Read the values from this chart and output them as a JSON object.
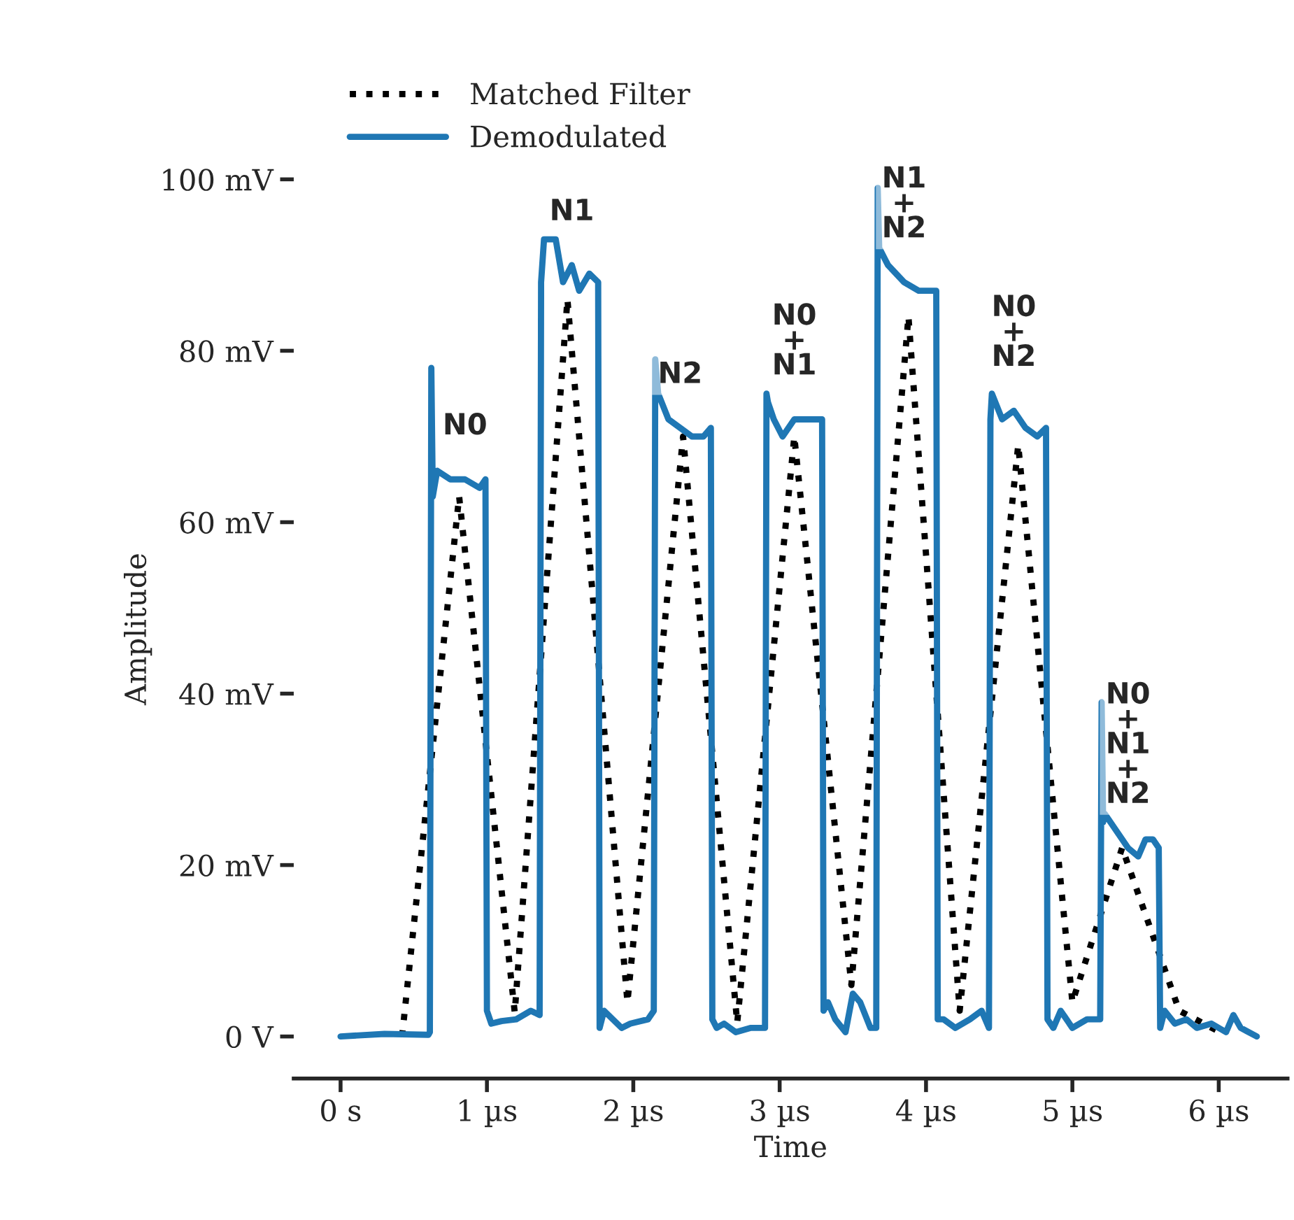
{
  "chart_data": {
    "type": "line",
    "xlabel": "Time",
    "ylabel": "Amplitude",
    "xlim": [
      -0.32,
      6.47
    ],
    "ylim": [
      -4.9,
      100
    ],
    "xticks": [
      {
        "value": 0,
        "label": "0 s"
      },
      {
        "value": 1,
        "label": "1 µs"
      },
      {
        "value": 2,
        "label": "2 µs"
      },
      {
        "value": 3,
        "label": "3 µs"
      },
      {
        "value": 4,
        "label": "4 µs"
      },
      {
        "value": 5,
        "label": "5 µs"
      },
      {
        "value": 6,
        "label": "6 µs"
      }
    ],
    "yticks": [
      {
        "value": 0,
        "label": "0 V"
      },
      {
        "value": 20,
        "label": "20 mV"
      },
      {
        "value": 40,
        "label": "40 mV"
      },
      {
        "value": 60,
        "label": "60 mV"
      },
      {
        "value": 80,
        "label": "80 mV"
      },
      {
        "value": 100,
        "label": "100 mV"
      }
    ],
    "grid": false,
    "legend": "top left",
    "series": [
      {
        "name": "Matched Filter",
        "color": "#000000",
        "line_style": "dotted",
        "x": [
          0.42,
          0.81,
          1.19,
          1.55,
          1.96,
          2.34,
          2.71,
          3.1,
          3.49,
          3.88,
          4.23,
          4.63,
          5.0,
          5.34,
          5.73,
          6.01
        ],
        "values": [
          0,
          63,
          2.8,
          86,
          4,
          70,
          1.6,
          70,
          6,
          84,
          3,
          69,
          4,
          22,
          3,
          0.5
        ]
      },
      {
        "name": "Demodulated",
        "color": "#1f77b4",
        "line_style": "solid",
        "x": [
          0,
          0.3,
          0.6,
          0.61,
          0.62,
          0.63,
          0.66,
          0.75,
          0.85,
          0.95,
          0.99,
          1.0,
          1.03,
          1.1,
          1.2,
          1.3,
          1.36,
          1.37,
          1.39,
          1.47,
          1.52,
          1.58,
          1.63,
          1.7,
          1.76,
          1.77,
          1.8,
          1.86,
          1.92,
          1.98,
          2.1,
          2.14,
          2.15,
          2.17,
          2.24,
          2.32,
          2.4,
          2.48,
          2.53,
          2.54,
          2.57,
          2.62,
          2.7,
          2.8,
          2.9,
          2.91,
          2.92,
          2.96,
          3.02,
          3.1,
          3.2,
          3.29,
          3.3,
          3.33,
          3.38,
          3.45,
          3.5,
          3.55,
          3.62,
          3.66,
          3.67,
          3.68,
          3.74,
          3.85,
          3.95,
          4.05,
          4.07,
          4.08,
          4.12,
          4.2,
          4.3,
          4.38,
          4.43,
          4.44,
          4.45,
          4.52,
          4.6,
          4.68,
          4.76,
          4.82,
          4.83,
          4.87,
          4.92,
          5.0,
          5.1,
          5.19,
          5.2,
          5.21,
          5.22,
          5.3,
          5.38,
          5.45,
          5.5,
          5.55,
          5.59,
          5.6,
          5.63,
          5.7,
          5.78,
          5.85,
          5.95,
          6.05,
          6.1,
          6.15,
          6.26
        ],
        "values": [
          0,
          0.3,
          0.2,
          0.5,
          78,
          63,
          66,
          65,
          65,
          64,
          65,
          3,
          1.5,
          1.8,
          2,
          3,
          2.5,
          88,
          93,
          93,
          88,
          90,
          87,
          89,
          88,
          1,
          3,
          2,
          1,
          1.5,
          2,
          3,
          79,
          75,
          72,
          71,
          70,
          70,
          71,
          2,
          1,
          1.5,
          0.5,
          1,
          1,
          75,
          74,
          72,
          70,
          72,
          72,
          72,
          3,
          4,
          2,
          0.5,
          5,
          4,
          1,
          1,
          99,
          92,
          90,
          88,
          87,
          87,
          87,
          2,
          2,
          1,
          2,
          3,
          1,
          72,
          75,
          72,
          73,
          71,
          70,
          71,
          2,
          1,
          3,
          1,
          2,
          2,
          39,
          25,
          26,
          24,
          22,
          21,
          23,
          23,
          22,
          1,
          3,
          1.5,
          2,
          1,
          1.5,
          0.5,
          2.5,
          1,
          0
        ]
      }
    ],
    "annotations": [
      {
        "text": "N0",
        "x": 0.85,
        "y": 65
      },
      {
        "text": "N1",
        "x": 1.58,
        "y": 90
      },
      {
        "text": "N2",
        "x": 2.32,
        "y": 71
      },
      {
        "text": "N0\n+\nN1",
        "x": 3.1,
        "y": 72
      },
      {
        "text": "N1\n+\nN2",
        "x": 3.85,
        "y": 88
      },
      {
        "text": "N0\n+\nN2",
        "x": 4.6,
        "y": 73
      },
      {
        "text": "N0\n+\nN1\n+\nN2",
        "x": 5.38,
        "y": 22
      }
    ]
  }
}
